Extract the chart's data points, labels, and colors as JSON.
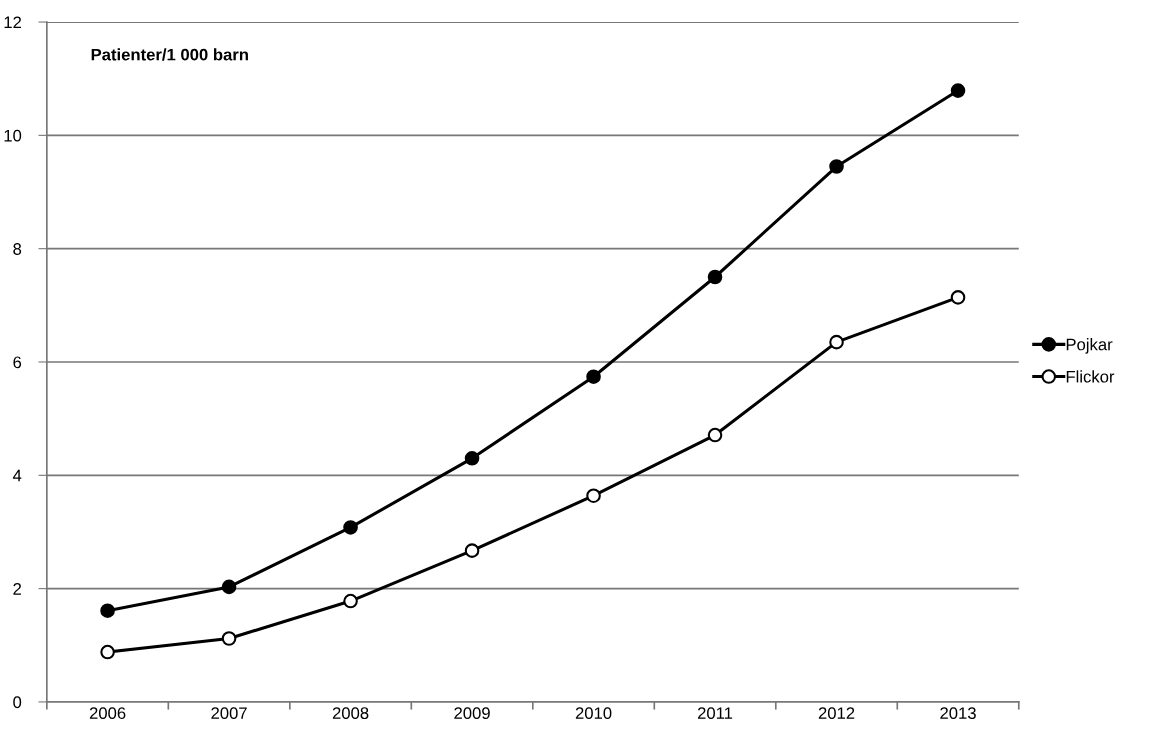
{
  "chart_data": {
    "type": "line",
    "ylabel": "Patienter/1 000 barn",
    "categories": [
      "2006",
      "2007",
      "2008",
      "2009",
      "2010",
      "2011",
      "2012",
      "2013"
    ],
    "series": [
      {
        "name": "Pojkar",
        "color": "#000000",
        "marker": "circle",
        "values": [
          1.61,
          2.03,
          3.08,
          4.3,
          5.74,
          7.5,
          9.45,
          10.79
        ]
      },
      {
        "name": "Flickor",
        "color": "#000000",
        "marker": "open_circle",
        "values": [
          0.88,
          1.12,
          1.78,
          2.67,
          3.64,
          4.71,
          6.35,
          7.14
        ]
      }
    ],
    "ylim": [
      0,
      12
    ],
    "yticks": [
      0,
      2,
      4,
      6,
      8,
      10,
      12
    ],
    "grid": "y",
    "legend": "right",
    "line_style": "solid"
  }
}
